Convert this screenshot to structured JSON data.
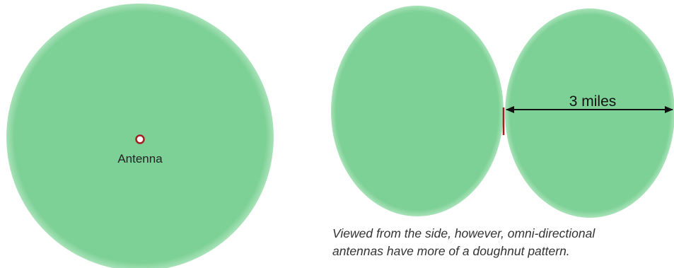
{
  "antenna_label": "Antenna",
  "distance_label": "3 miles",
  "caption": {
    "line1": "Viewed from the side, however, omni-directional",
    "line2": "antennas have more of a doughnut pattern."
  },
  "colors": {
    "coverage_fill": "#7dd196",
    "coverage_edge": "#8fd8a6",
    "antenna_marker": "#a31f1f",
    "arrow": "#111111"
  }
}
